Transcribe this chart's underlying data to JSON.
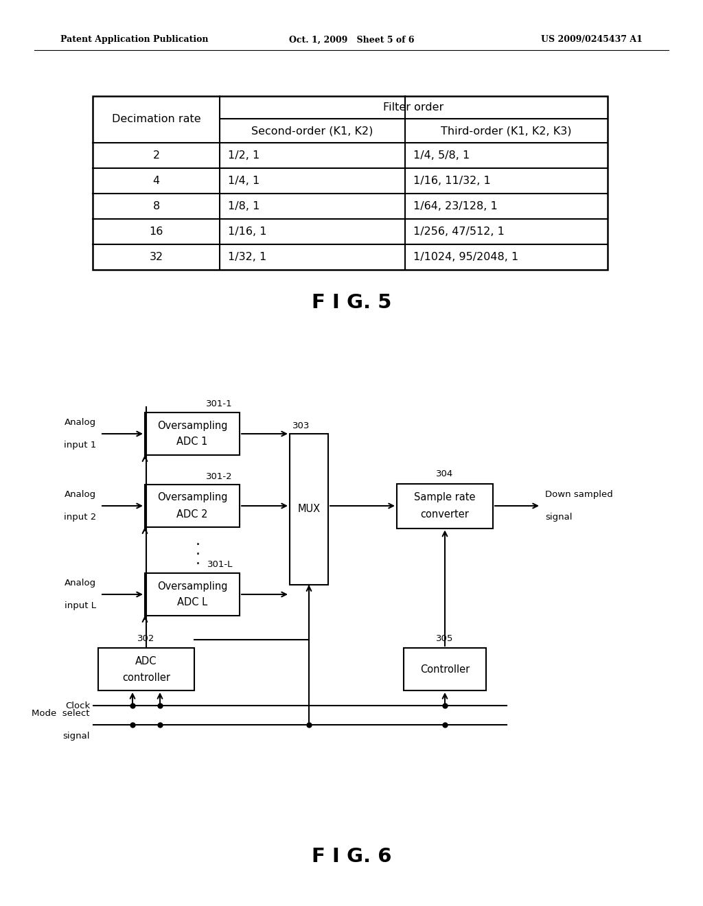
{
  "header_left": "Patent Application Publication",
  "header_center": "Oct. 1, 2009   Sheet 5 of 6",
  "header_right": "US 2009/0245437 A1",
  "table_col0": "Decimation rate",
  "table_filter_order": "Filter order",
  "table_col1": "Second-order (K1, K2)",
  "table_col2": "Third-order (K1, K2, K3)",
  "table_rows": [
    [
      "2",
      "1/2, 1",
      "1/4, 5/8, 1"
    ],
    [
      "4",
      "1/4, 1",
      "1/16, 11/32, 1"
    ],
    [
      "8",
      "1/8, 1",
      "1/64, 23/128, 1"
    ],
    [
      "16",
      "1/16, 1",
      "1/256, 47/512, 1"
    ],
    [
      "32",
      "1/32, 1",
      "1/1024, 95/2048, 1"
    ]
  ],
  "fig5_label": "F I G. 5",
  "fig6_label": "F I G. 6"
}
